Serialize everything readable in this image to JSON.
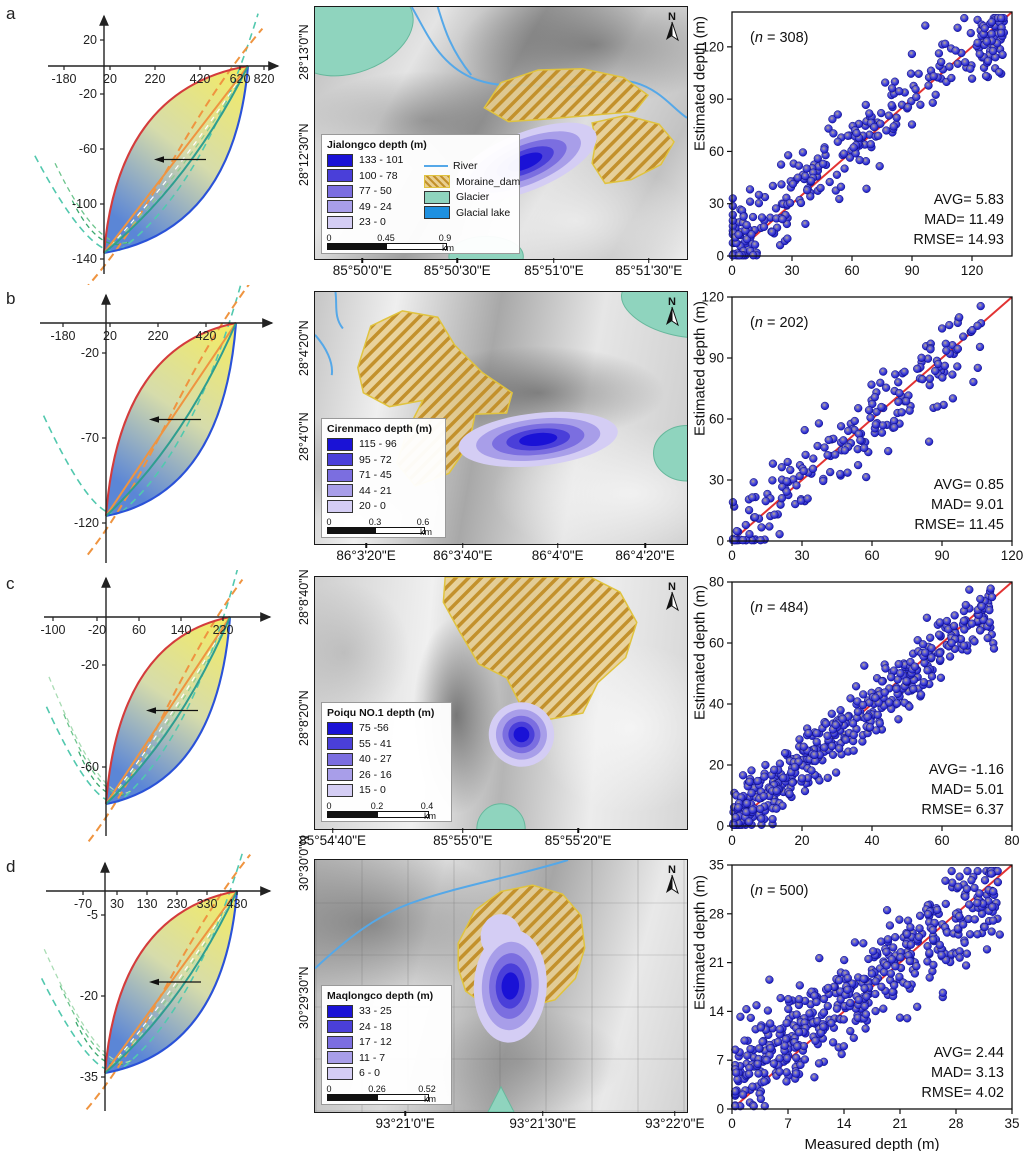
{
  "colors": {
    "depth_palette_dark_to_light": [
      "#1a12d6",
      "#4a3fd9",
      "#7b6ee0",
      "#a89ee9",
      "#d4cdf4"
    ],
    "glacier": "#8fd4be",
    "glacier_edge": "#66b89c",
    "moraine_fill": "#e9cf8f",
    "moraine_hatch": "#c3912c",
    "moraine_edge": "#e0c33e",
    "river": "#55a8e8",
    "glacial_lake_legend": "#1e90e0",
    "identity_line": "#e23333",
    "dot_blue": "#2020cc",
    "lens_red": "#d43c3c",
    "lens_blue": "#2a52d8",
    "lens_orange": "#ef9440",
    "lens_teal": "#2f9e90",
    "lens_fill_top": "#f5ec60",
    "lens_fill_bottom": "#5b86d6"
  },
  "figure": {
    "shared_ylabel": "Estimated depth (m)",
    "shared_xlabel": "Measured depth (m)",
    "panels": [
      {
        "id": "a",
        "label": "a",
        "curve_plot": {
          "xticks": [
            "-180",
            "20",
            "220",
            "420",
            "620",
            "820"
          ],
          "yticks": [
            "20",
            "-20",
            "-60",
            "-100",
            "-140"
          ]
        },
        "map": {
          "title": "Jialongco depth (m)",
          "depth_classes": [
            "133 - 101",
            "100 - 78",
            "77 - 50",
            "49 - 24",
            "23 - 0"
          ],
          "extra_legend": [
            "River",
            "Moraine_dam",
            "Glacier",
            "Glacial lake"
          ],
          "scale_labels": [
            "0",
            "0.45",
            "0.9"
          ],
          "scale_unit": "km",
          "north": "N",
          "lat_labels": [
            "28°13'0\"N",
            "28°12'30\"N"
          ],
          "lon_labels": [
            "85°50'0\"E",
            "85°50'30\"E",
            "85°51'0\"E",
            "85°51'30\"E"
          ]
        },
        "scatter": {
          "n_prefix": "(",
          "n_italic": "n",
          "n_rest": " = 308)",
          "stats": [
            "AVG= 5.83",
            "MAD= 11.49",
            "RMSE= 14.93"
          ],
          "xticks": [
            "0",
            "30",
            "60",
            "90",
            "120"
          ],
          "yticks": [
            "0",
            "30",
            "60",
            "90",
            "120"
          ]
        }
      },
      {
        "id": "b",
        "label": "b",
        "curve_plot": {
          "xticks": [
            "-180",
            "20",
            "220",
            "420"
          ],
          "yticks": [
            "-20",
            "-70",
            "-120"
          ]
        },
        "map": {
          "title": "Cirenmaco depth (m)",
          "depth_classes": [
            "115 - 96",
            "95 - 72",
            "71 - 45",
            "44 - 21",
            "20 - 0"
          ],
          "extra_legend": [],
          "scale_labels": [
            "0",
            "0.3",
            "0.6"
          ],
          "scale_unit": "km",
          "north": "N",
          "lat_labels": [
            "28°4'20\"N",
            "28°4'0\"N"
          ],
          "lon_labels": [
            "86°3'20\"E",
            "86°3'40\"E",
            "86°4'0\"E",
            "86°4'20\"E"
          ]
        },
        "scatter": {
          "n_prefix": "(",
          "n_italic": "n",
          "n_rest": " = 202)",
          "stats": [
            "AVG= 0.85",
            "MAD= 9.01",
            "RMSE= 11.45"
          ],
          "xticks": [
            "0",
            "30",
            "60",
            "90",
            "120"
          ],
          "yticks": [
            "0",
            "30",
            "60",
            "90",
            "120"
          ]
        }
      },
      {
        "id": "c",
        "label": "c",
        "curve_plot": {
          "xticks": [
            "-100",
            "-20",
            "60",
            "140",
            "220"
          ],
          "yticks": [
            "-20",
            "-60"
          ]
        },
        "map": {
          "title": "Poiqu NO.1 depth (m)",
          "depth_classes": [
            "75 -56",
            "55 - 41",
            "40 - 27",
            "26 - 16",
            "15 - 0"
          ],
          "extra_legend": [],
          "scale_labels": [
            "0",
            "0.2",
            "0.4"
          ],
          "scale_unit": "km",
          "north": "N",
          "lat_labels": [
            "28°8'40\"N",
            "28°8'20\"N"
          ],
          "lon_labels": [
            "85°54'40\"E",
            "85°55'0\"E",
            "85°55'20\"E"
          ]
        },
        "scatter": {
          "n_prefix": "(",
          "n_italic": "n",
          "n_rest": " = 484)",
          "stats": [
            "AVG= -1.16",
            "MAD= 5.01",
            "RMSE= 6.37"
          ],
          "xticks": [
            "0",
            "20",
            "40",
            "60",
            "80"
          ],
          "yticks": [
            "0",
            "20",
            "40",
            "60",
            "80"
          ]
        }
      },
      {
        "id": "d",
        "label": "d",
        "curve_plot": {
          "xticks": [
            "-70",
            "30",
            "130",
            "230",
            "330",
            "430"
          ],
          "yticks": [
            "-5",
            "-20",
            "-35"
          ]
        },
        "map": {
          "title": "Maqlongco depth (m)",
          "depth_classes": [
            "33 - 25",
            "24 - 18",
            "17 - 12",
            "11 - 7",
            "6 - 0"
          ],
          "extra_legend": [],
          "scale_labels": [
            "0",
            "0.26",
            "0.52"
          ],
          "scale_unit": "km",
          "north": "N",
          "lat_labels": [
            "30°30'0\"N",
            "30°29'30\"N"
          ],
          "lon_labels": [
            "93°21'0\"E",
            "93°21'30\"E",
            "93°22'0\"E"
          ]
        },
        "scatter": {
          "n_prefix": "(",
          "n_italic": "n",
          "n_rest": " = 500)",
          "stats": [
            "AVG= 2.44",
            "MAD= 3.13",
            "RMSE= 4.02"
          ],
          "xticks": [
            "0",
            "7",
            "14",
            "21",
            "28",
            "35"
          ],
          "yticks": [
            "0",
            "7",
            "14",
            "21",
            "28",
            "35"
          ]
        }
      }
    ]
  },
  "chart_data": [
    {
      "panel": "a",
      "type": "scatter",
      "n": 308,
      "xlabel": "Measured depth (m)",
      "ylabel": "Estimated depth (m)",
      "xlim": [
        0,
        140
      ],
      "ylim": [
        0,
        140
      ],
      "xticks": [
        0,
        30,
        60,
        90,
        120
      ],
      "yticks": [
        0,
        30,
        60,
        90,
        120
      ],
      "identity_line": true,
      "stats": {
        "AVG": 5.83,
        "MAD": 11.49,
        "RMSE": 14.93
      },
      "point_cloud": {
        "seed": 11,
        "x_max": 136,
        "x_pow": 1.5,
        "slope": 0.95,
        "intercept": 6,
        "noise_sd": 11,
        "edge_cluster": {
          "fraction": 0.13,
          "x_min": 124,
          "x_span": 12,
          "y_offset": -10,
          "noise_sd": 10
        }
      }
    },
    {
      "panel": "b",
      "type": "scatter",
      "n": 202,
      "xlim": [
        0,
        120
      ],
      "ylim": [
        0,
        120
      ],
      "xticks": [
        0,
        30,
        60,
        90,
        120
      ],
      "yticks": [
        0,
        30,
        60,
        90,
        120
      ],
      "identity_line": true,
      "stats": {
        "AVG": 0.85,
        "MAD": 9.01,
        "RMSE": 11.45
      },
      "point_cloud": {
        "seed": 22,
        "x_max": 107,
        "x_pow": 1.15,
        "slope": 0.95,
        "intercept": 2,
        "noise_sd": 10
      }
    },
    {
      "panel": "c",
      "type": "scatter",
      "n": 484,
      "xlim": [
        0,
        80
      ],
      "ylim": [
        0,
        80
      ],
      "xticks": [
        0,
        20,
        40,
        60,
        80
      ],
      "yticks": [
        0,
        20,
        40,
        60,
        80
      ],
      "identity_line": true,
      "stats": {
        "AVG": -1.16,
        "MAD": 5.01,
        "RMSE": 6.37
      },
      "point_cloud": {
        "seed": 33,
        "x_max": 75,
        "x_pow": 1.25,
        "slope": 0.93,
        "intercept": 1.5,
        "noise_sd": 5
      }
    },
    {
      "panel": "d",
      "type": "scatter",
      "n": 500,
      "xlim": [
        0,
        35
      ],
      "ylim": [
        0,
        35
      ],
      "xticks": [
        0,
        7,
        14,
        21,
        28,
        35
      ],
      "yticks": [
        0,
        7,
        14,
        21,
        28,
        35
      ],
      "identity_line": true,
      "stats": {
        "AVG": 2.44,
        "MAD": 3.13,
        "RMSE": 4.02
      },
      "point_cloud": {
        "seed": 44,
        "x_max": 33.5,
        "x_pow": 1.1,
        "slope": 0.82,
        "intercept": 3.6,
        "noise_sd": 3.4
      }
    },
    {
      "panel": "a",
      "type": "line",
      "role": "width-depth model envelope",
      "x_ticks": [
        -180,
        20,
        220,
        420,
        620,
        820
      ],
      "y_ticks": [
        20,
        -20,
        -60,
        -100,
        -140
      ],
      "envelope": {
        "x_end": 750,
        "y_min": -135
      },
      "annotation": "leftward arrow at mid-curve"
    },
    {
      "panel": "b",
      "type": "line",
      "role": "width-depth model envelope",
      "x_ticks": [
        -180,
        20,
        220,
        420
      ],
      "y_ticks": [
        -20,
        -70,
        -120
      ],
      "envelope": {
        "x_end": 510,
        "y_min": -115
      },
      "annotation": "leftward arrow at mid-curve"
    },
    {
      "panel": "c",
      "type": "line",
      "role": "width-depth model envelope",
      "x_ticks": [
        -100,
        -20,
        60,
        140,
        220
      ],
      "y_ticks": [
        -20,
        -60
      ],
      "envelope": {
        "x_end": 215,
        "y_min": -75
      },
      "annotation": "leftward arrow at mid-curve"
    },
    {
      "panel": "d",
      "type": "line",
      "role": "width-depth model envelope",
      "x_ticks": [
        -70,
        30,
        130,
        230,
        330,
        430
      ],
      "y_ticks": [
        -5,
        -20,
        -35
      ],
      "envelope": {
        "x_end": 430,
        "y_min": -33
      },
      "annotation": "leftward arrow at mid-curve"
    }
  ]
}
